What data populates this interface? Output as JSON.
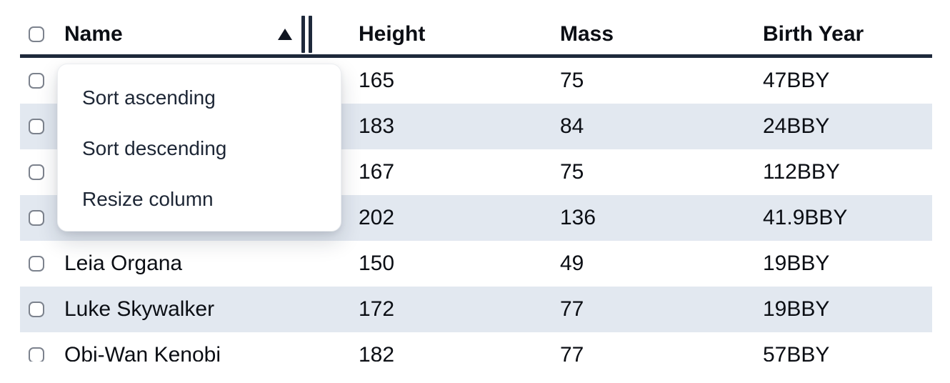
{
  "table": {
    "columns": [
      {
        "label": "Name"
      },
      {
        "label": "Height"
      },
      {
        "label": "Mass"
      },
      {
        "label": "Birth Year"
      }
    ],
    "sort": {
      "column": "Name",
      "direction": "ascending"
    },
    "rows": [
      {
        "name": "",
        "height": "165",
        "mass": "75",
        "birth_year": "47BBY"
      },
      {
        "name": "",
        "height": "183",
        "mass": "84",
        "birth_year": "24BBY"
      },
      {
        "name": "",
        "height": "167",
        "mass": "75",
        "birth_year": "112BBY"
      },
      {
        "name": "",
        "height": "202",
        "mass": "136",
        "birth_year": "41.9BBY"
      },
      {
        "name": "Leia Organa",
        "height": "150",
        "mass": "49",
        "birth_year": "19BBY"
      },
      {
        "name": "Luke Skywalker",
        "height": "172",
        "mass": "77",
        "birth_year": "19BBY"
      },
      {
        "name": "Obi-Wan Kenobi",
        "height": "182",
        "mass": "77",
        "birth_year": "57BBY"
      }
    ]
  },
  "context_menu": {
    "items": [
      "Sort ascending",
      "Sort descending",
      "Resize column"
    ]
  },
  "icons": {
    "sort_ascending": "filled-up-triangle",
    "column_resize": "double-vertical-bars",
    "row_select": "empty-rounded-checkbox"
  },
  "colors": {
    "header_border": "#1e293b",
    "row_stripe": "#e2e8f0",
    "menu_background": "#ffffff",
    "cell_text": "#0b0e14",
    "menu_text": "#1d2635"
  }
}
